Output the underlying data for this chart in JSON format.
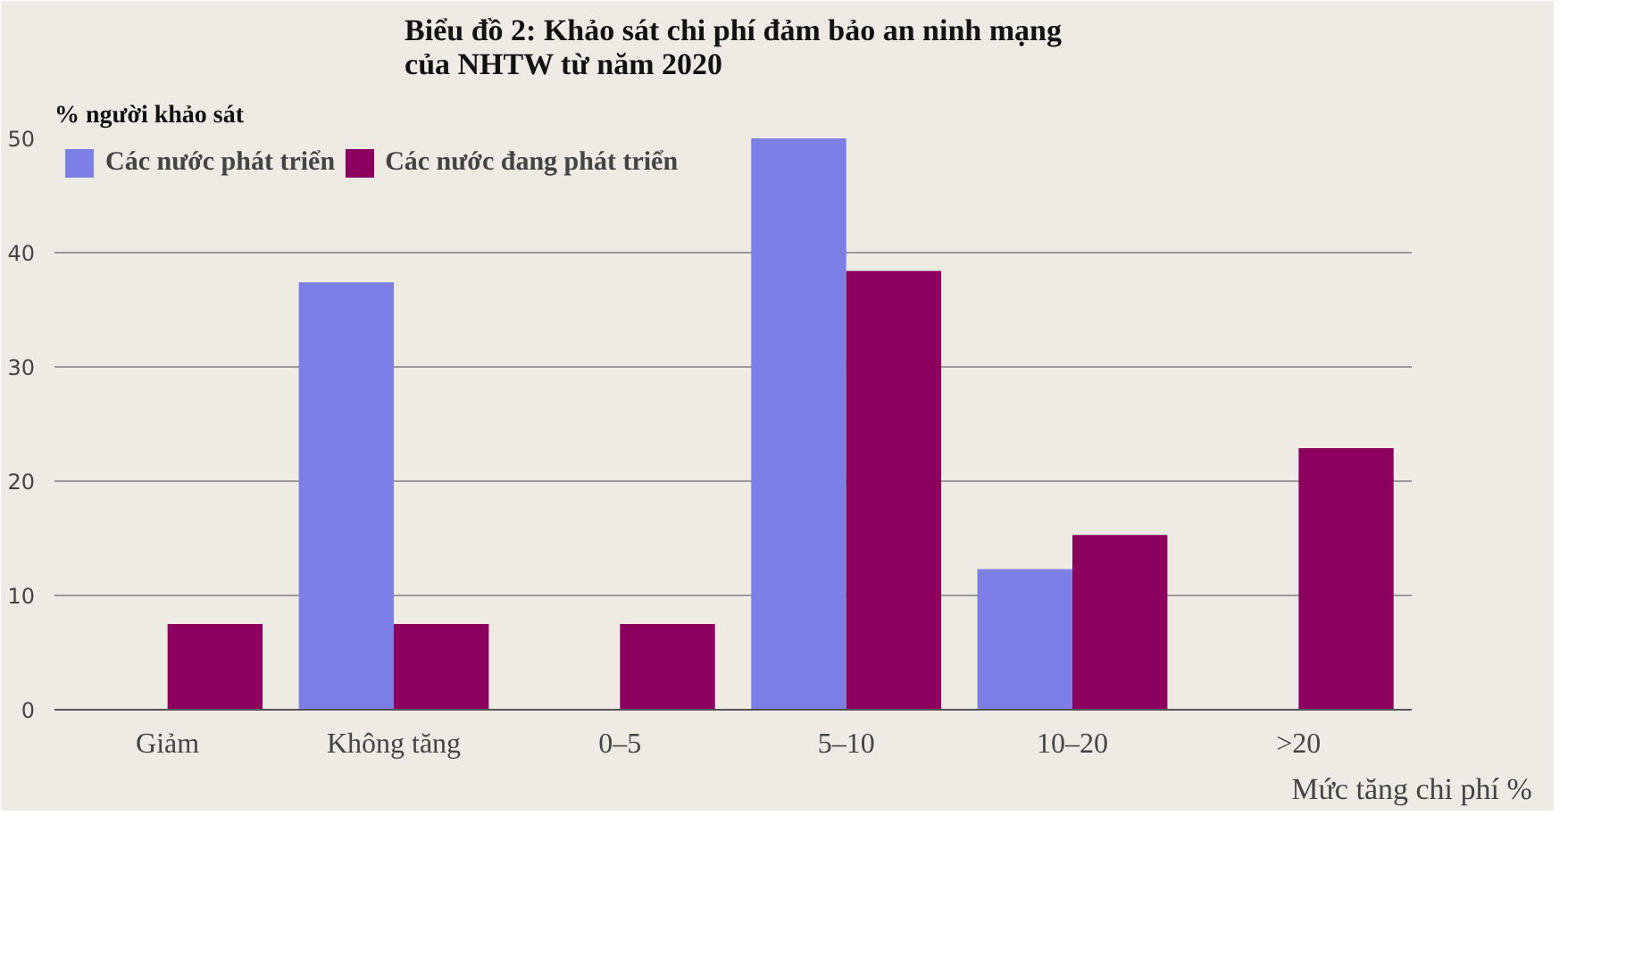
{
  "chart_data": {
    "type": "bar",
    "title": "Biểu đồ 2: Khảo sát chi phí đảm bảo an ninh mạng\ncủa NHTW từ năm 2020",
    "ylabel": "% người khảo sát",
    "xlabel": "Mức tăng chi phí %",
    "categories": [
      "Giảm",
      "Không tăng",
      "0–5",
      "5–10",
      "10–20",
      ">20"
    ],
    "series": [
      {
        "name": "Các nước phát triển",
        "color": "#7b7fe6",
        "values": [
          0,
          37.4,
          0,
          50,
          12.3,
          0
        ]
      },
      {
        "name": "Các nước đang phát triển",
        "color": "#8c0060",
        "values": [
          7.5,
          7.5,
          7.5,
          38.4,
          15.3,
          22.9
        ]
      }
    ],
    "ylim": [
      0,
      50
    ],
    "yticks": [
      0,
      10,
      20,
      30,
      40,
      50
    ],
    "grid": "y",
    "legend": "top left"
  }
}
